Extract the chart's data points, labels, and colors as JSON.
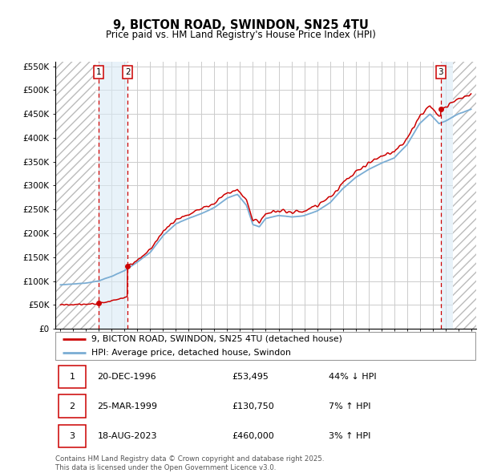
{
  "title": "9, BICTON ROAD, SWINDON, SN25 4TU",
  "subtitle": "Price paid vs. HM Land Registry's House Price Index (HPI)",
  "ylim": [
    0,
    560000
  ],
  "yticks": [
    0,
    50000,
    100000,
    150000,
    200000,
    250000,
    300000,
    350000,
    400000,
    450000,
    500000,
    550000
  ],
  "ytick_labels": [
    "£0",
    "£50K",
    "£100K",
    "£150K",
    "£200K",
    "£250K",
    "£300K",
    "£350K",
    "£400K",
    "£450K",
    "£500K",
    "£550K"
  ],
  "xlim_start": 1993.6,
  "xlim_end": 2026.4,
  "hatch_left_end": 1996.75,
  "hatch_right_start": 2024.58,
  "sale_dates": [
    1996.97,
    1999.23,
    2023.63
  ],
  "sale_labels": [
    "1",
    "2",
    "3"
  ],
  "sale_prices": [
    53495,
    130750,
    460000
  ],
  "legend_line1": "9, BICTON ROAD, SWINDON, SN25 4TU (detached house)",
  "legend_line2": "HPI: Average price, detached house, Swindon",
  "table_rows": [
    [
      "1",
      "20-DEC-1996",
      "£53,495",
      "44% ↓ HPI"
    ],
    [
      "2",
      "25-MAR-1999",
      "£130,750",
      "7% ↑ HPI"
    ],
    [
      "3",
      "18-AUG-2023",
      "£460,000",
      "3% ↑ HPI"
    ]
  ],
  "footer": "Contains HM Land Registry data © Crown copyright and database right 2025.\nThis data is licensed under the Open Government Licence v3.0.",
  "line_color_red": "#cc0000",
  "line_color_blue": "#7aadd4",
  "grid_color": "#cccccc",
  "vline_color": "#cc0000"
}
